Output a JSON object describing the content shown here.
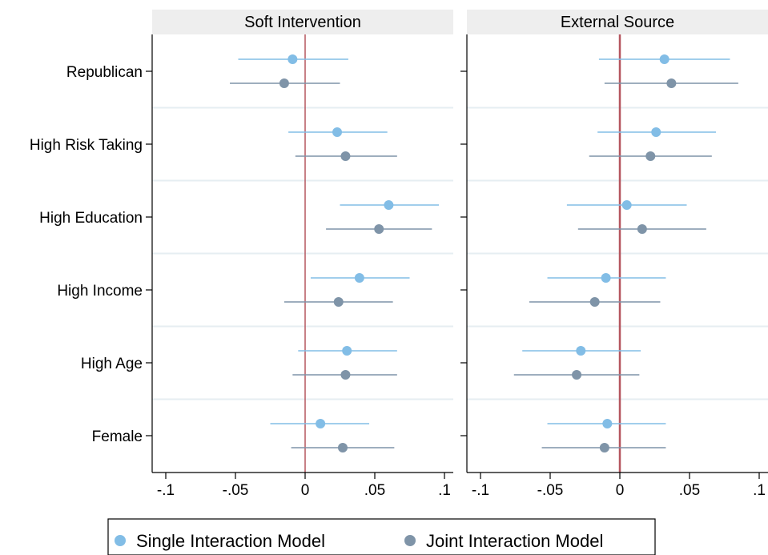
{
  "chart_data": {
    "type": "scatter",
    "xlim": [
      -0.1,
      0.1
    ],
    "x_ticks": [
      -0.1,
      -0.05,
      0,
      0.05,
      0.1
    ],
    "x_tick_labels": [
      "-.1",
      "-.05",
      "0",
      ".05",
      ".1"
    ],
    "reference_line": 0,
    "categories": [
      "Republican",
      "High Risk Taking",
      "High Education",
      "High Income",
      "High Age",
      "Female"
    ],
    "colors": {
      "single": "#82bde6",
      "joint": "#7f94a8",
      "reference_line": "#b5565f",
      "strip_bg": "#eeeeee",
      "separator": "#e6eef2"
    },
    "legend": {
      "placement": "bottom",
      "items": [
        {
          "label": "Single Interaction Model",
          "series": "single"
        },
        {
          "label": "Joint Interaction Model",
          "series": "joint"
        }
      ]
    },
    "panels": [
      {
        "title": "Soft Intervention",
        "series": [
          {
            "key": "single",
            "points": [
              {
                "est": -0.009,
                "lo": -0.048,
                "hi": 0.031
              },
              {
                "est": 0.023,
                "lo": -0.012,
                "hi": 0.059
              },
              {
                "est": 0.06,
                "lo": 0.025,
                "hi": 0.096
              },
              {
                "est": 0.039,
                "lo": 0.004,
                "hi": 0.075
              },
              {
                "est": 0.03,
                "lo": -0.005,
                "hi": 0.066
              },
              {
                "est": 0.011,
                "lo": -0.025,
                "hi": 0.046
              }
            ]
          },
          {
            "key": "joint",
            "points": [
              {
                "est": -0.015,
                "lo": -0.054,
                "hi": 0.025
              },
              {
                "est": 0.029,
                "lo": -0.007,
                "hi": 0.066
              },
              {
                "est": 0.053,
                "lo": 0.015,
                "hi": 0.091
              },
              {
                "est": 0.024,
                "lo": -0.015,
                "hi": 0.063
              },
              {
                "est": 0.029,
                "lo": -0.009,
                "hi": 0.066
              },
              {
                "est": 0.027,
                "lo": -0.01,
                "hi": 0.064
              }
            ]
          }
        ]
      },
      {
        "title": "External Source",
        "series": [
          {
            "key": "single",
            "points": [
              {
                "est": 0.032,
                "lo": -0.015,
                "hi": 0.079
              },
              {
                "est": 0.026,
                "lo": -0.016,
                "hi": 0.069
              },
              {
                "est": 0.005,
                "lo": -0.038,
                "hi": 0.048
              },
              {
                "est": -0.01,
                "lo": -0.052,
                "hi": 0.033
              },
              {
                "est": -0.028,
                "lo": -0.07,
                "hi": 0.015
              },
              {
                "est": -0.009,
                "lo": -0.052,
                "hi": 0.033
              }
            ]
          },
          {
            "key": "joint",
            "points": [
              {
                "est": 0.037,
                "lo": -0.011,
                "hi": 0.085
              },
              {
                "est": 0.022,
                "lo": -0.022,
                "hi": 0.066
              },
              {
                "est": 0.016,
                "lo": -0.03,
                "hi": 0.062
              },
              {
                "est": -0.018,
                "lo": -0.065,
                "hi": 0.029
              },
              {
                "est": -0.031,
                "lo": -0.076,
                "hi": 0.014
              },
              {
                "est": -0.011,
                "lo": -0.056,
                "hi": 0.033
              }
            ]
          }
        ]
      }
    ]
  }
}
